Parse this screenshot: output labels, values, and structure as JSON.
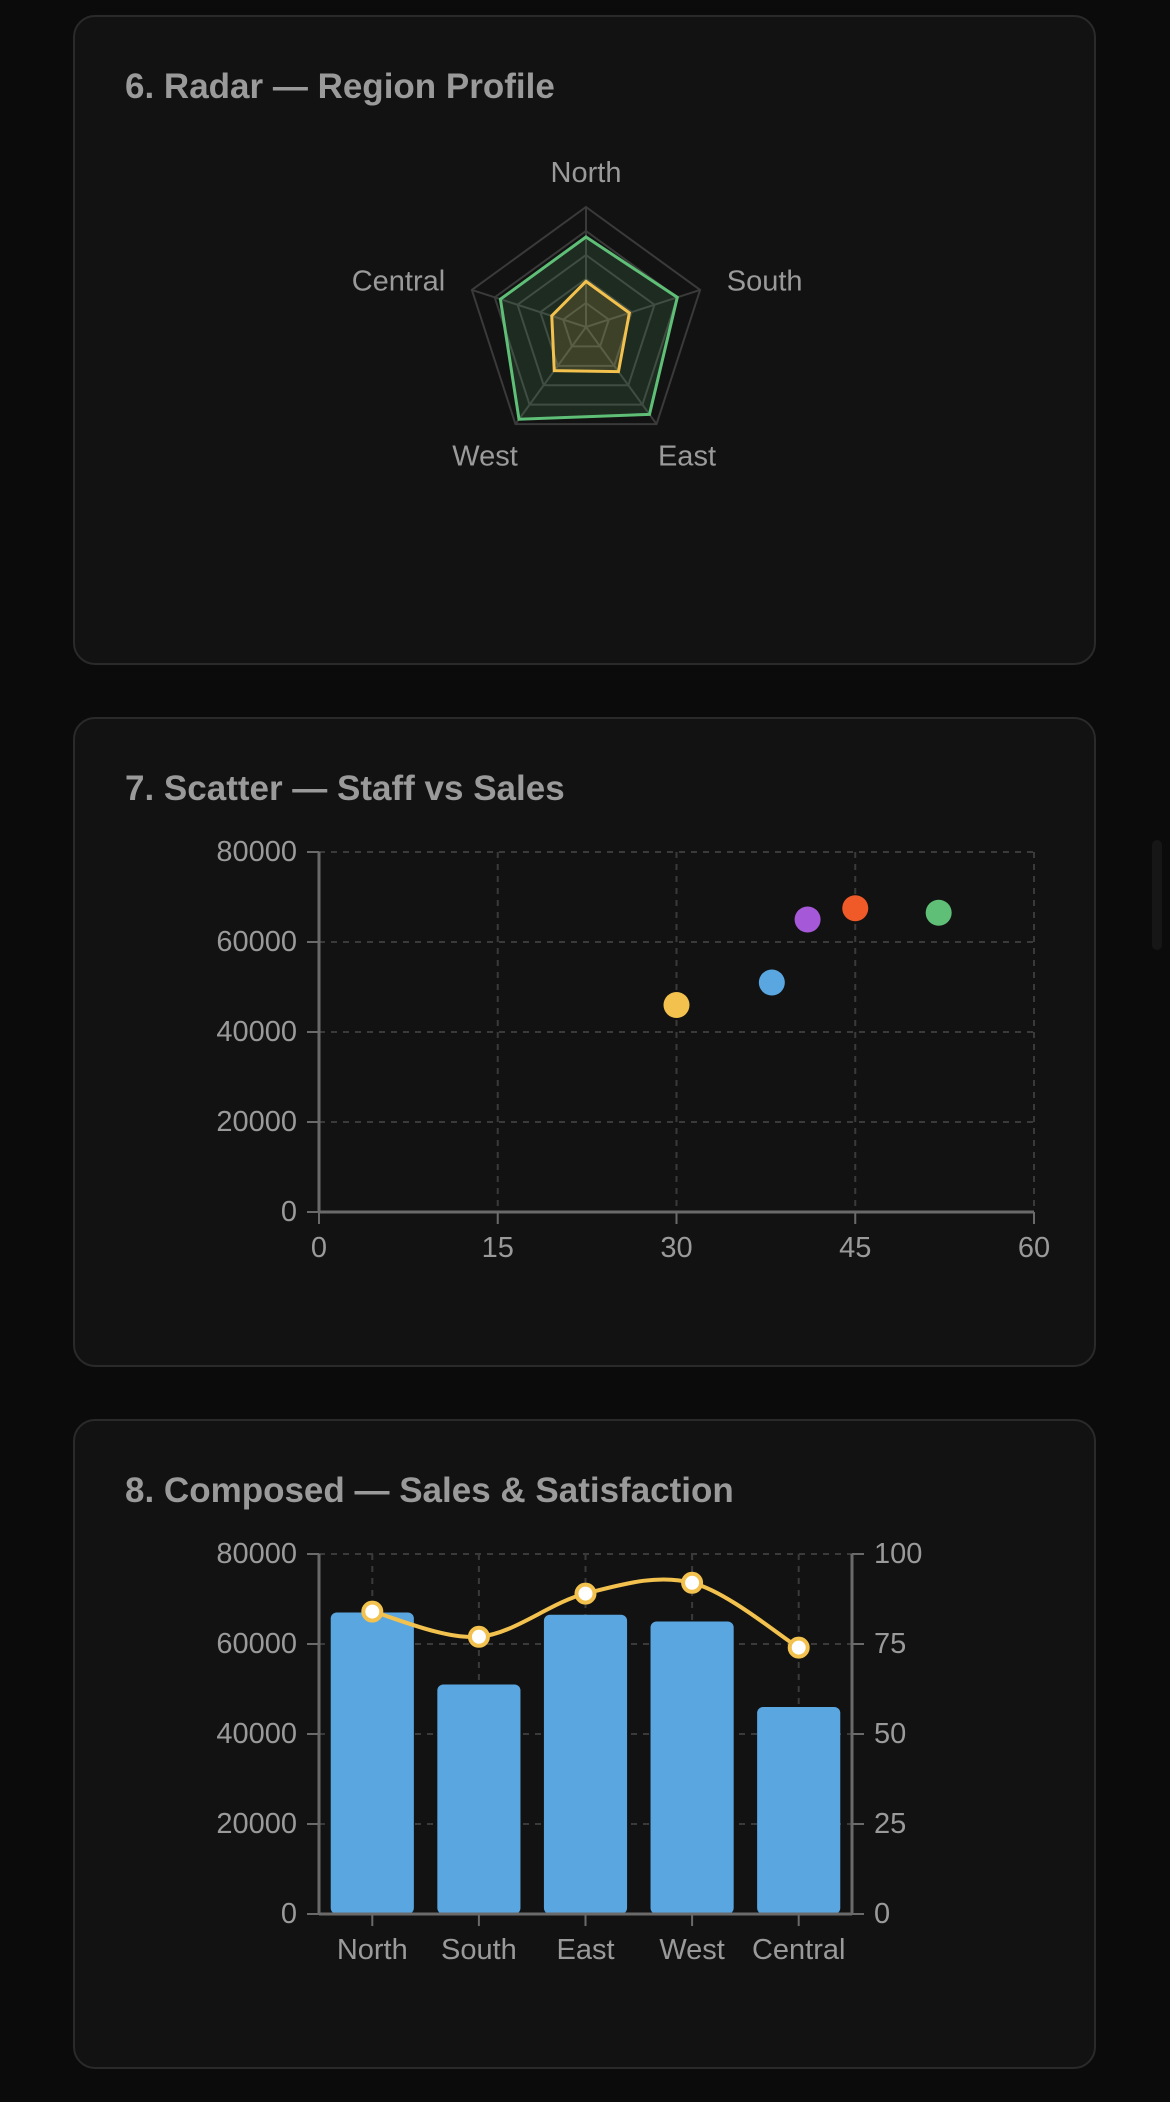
{
  "colors": {
    "grid": "#3a3a3a",
    "axis": "#6a6a6a",
    "text": "#9a9a9a",
    "green": "#5fbf77",
    "yellow": "#f2c14e",
    "blue": "#5aa6e0",
    "purple": "#a559d9",
    "orange": "#f05a28"
  },
  "chart_data": [
    {
      "type": "radar",
      "title": "6. Radar — Region Profile",
      "axes": [
        "North",
        "South",
        "East",
        "West",
        "Central"
      ],
      "range": [
        0,
        100
      ],
      "series": [
        {
          "color": "#5fbf77",
          "values": [
            75,
            80,
            90,
            95,
            75
          ]
        },
        {
          "color": "#f2c14e",
          "values": [
            38,
            38,
            46,
            45,
            30
          ]
        }
      ]
    },
    {
      "type": "scatter",
      "title": "7. Scatter — Staff vs Sales",
      "xlim": [
        0,
        60
      ],
      "ylim": [
        0,
        80000
      ],
      "xticks": [
        0,
        15,
        30,
        45,
        60
      ],
      "yticks": [
        0,
        20000,
        40000,
        60000,
        80000
      ],
      "grid": true,
      "points": [
        {
          "x": 30,
          "y": 46000,
          "color": "#f2c14e"
        },
        {
          "x": 38,
          "y": 51000,
          "color": "#5aa6e0"
        },
        {
          "x": 41,
          "y": 65000,
          "color": "#a559d9"
        },
        {
          "x": 45,
          "y": 67500,
          "color": "#f05a28"
        },
        {
          "x": 52,
          "y": 66500,
          "color": "#5fbf77"
        }
      ]
    },
    {
      "type": "composed",
      "title": "8. Composed — Sales & Satisfaction",
      "categories": [
        "North",
        "South",
        "East",
        "West",
        "Central"
      ],
      "bar_series": {
        "color": "#5aa6e0",
        "values": [
          67000,
          51000,
          66500,
          65000,
          46000
        ],
        "ylim": [
          0,
          80000
        ]
      },
      "line_series": {
        "color": "#f2c14e",
        "values": [
          84,
          77,
          89,
          92,
          74
        ],
        "ylim": [
          0,
          100
        ]
      },
      "yticks_left": [
        0,
        20000,
        40000,
        60000,
        80000
      ],
      "yticks_right": [
        0,
        25,
        50,
        75,
        100
      ],
      "grid": true
    }
  ]
}
